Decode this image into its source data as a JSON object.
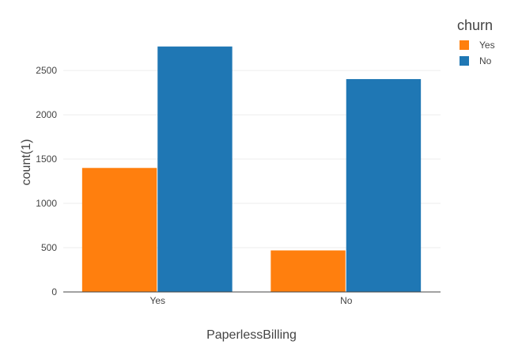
{
  "chart_data": {
    "type": "bar",
    "categories": [
      "Yes",
      "No"
    ],
    "series": [
      {
        "name": "Yes",
        "values": [
          1400,
          469
        ],
        "color": "#ff7f0e"
      },
      {
        "name": "No",
        "values": [
          2771,
          2403
        ],
        "color": "#1f77b4"
      }
    ],
    "xlabel": "PaperlessBilling",
    "ylabel": "count(1)",
    "ylim": [
      0,
      2917
    ],
    "yticks": [
      0,
      500,
      1000,
      1500,
      2000,
      2500
    ],
    "grid": true,
    "barmode": "group",
    "legend": {
      "title": "churn",
      "position": "top-right"
    }
  }
}
